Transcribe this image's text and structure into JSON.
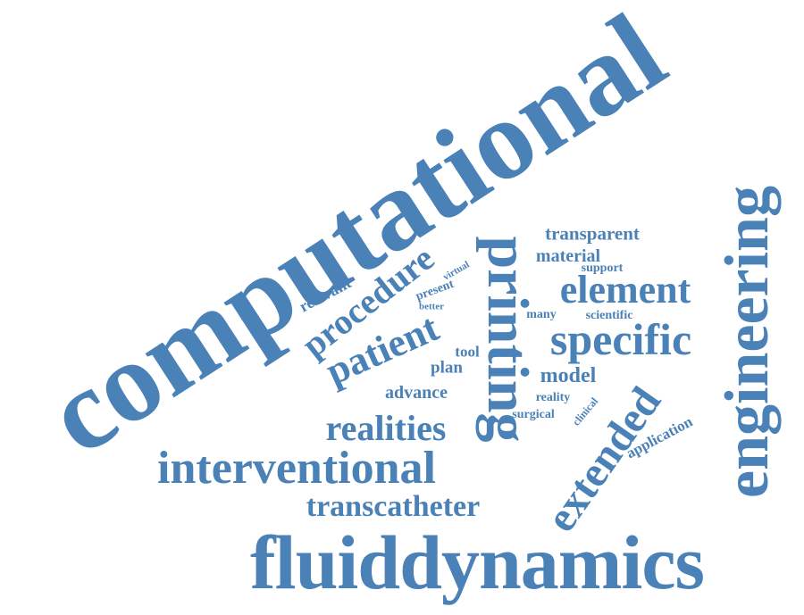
{
  "accent_color": "#4a81b7",
  "words": {
    "computational": "computational",
    "fluiddynamics": "fluiddynamics",
    "engineering": "engineering",
    "printing": "printing",
    "interventional": "interventional",
    "extended": "extended",
    "specific": "specific",
    "element": "element",
    "patient": "patient",
    "procedure": "procedure",
    "realities": "realities",
    "transcatheter": "transcatheter",
    "model": "model",
    "transparent": "transparent",
    "material": "material",
    "advance": "advance",
    "plan": "plan",
    "relevant": "relevant",
    "tool": "tool",
    "application": "application",
    "support": "support",
    "scientific": "scientific",
    "many": "many",
    "reality": "reality",
    "surgical": "surgical",
    "present": "present",
    "clinical": "clinical",
    "virtual": "virtual",
    "better": "better"
  }
}
